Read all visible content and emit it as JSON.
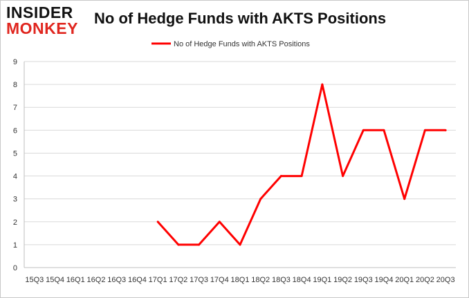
{
  "logo": {
    "line1": "INSIDER",
    "line2": "MONKEY"
  },
  "chart_data": {
    "type": "line",
    "title": "No of Hedge Funds with AKTS Positions",
    "xlabel": "",
    "ylabel": "",
    "categories": [
      "15Q3",
      "15Q4",
      "16Q1",
      "16Q2",
      "16Q3",
      "16Q4",
      "17Q1",
      "17Q2",
      "17Q3",
      "17Q4",
      "18Q1",
      "18Q2",
      "18Q3",
      "18Q4",
      "19Q1",
      "19Q2",
      "19Q3",
      "19Q4",
      "20Q1",
      "20Q2",
      "20Q3"
    ],
    "series": [
      {
        "name": "No of Hedge Funds with AKTS Positions",
        "color": "#ff0000",
        "values": [
          null,
          null,
          null,
          null,
          null,
          null,
          2,
          1,
          1,
          2,
          1,
          3,
          4,
          4,
          8,
          4,
          6,
          6,
          3,
          6,
          6
        ]
      }
    ],
    "ylim": [
      0,
      9
    ],
    "yticks": [
      0,
      1,
      2,
      3,
      4,
      5,
      6,
      7,
      8,
      9
    ],
    "grid": true,
    "legend_position": "top-center"
  }
}
